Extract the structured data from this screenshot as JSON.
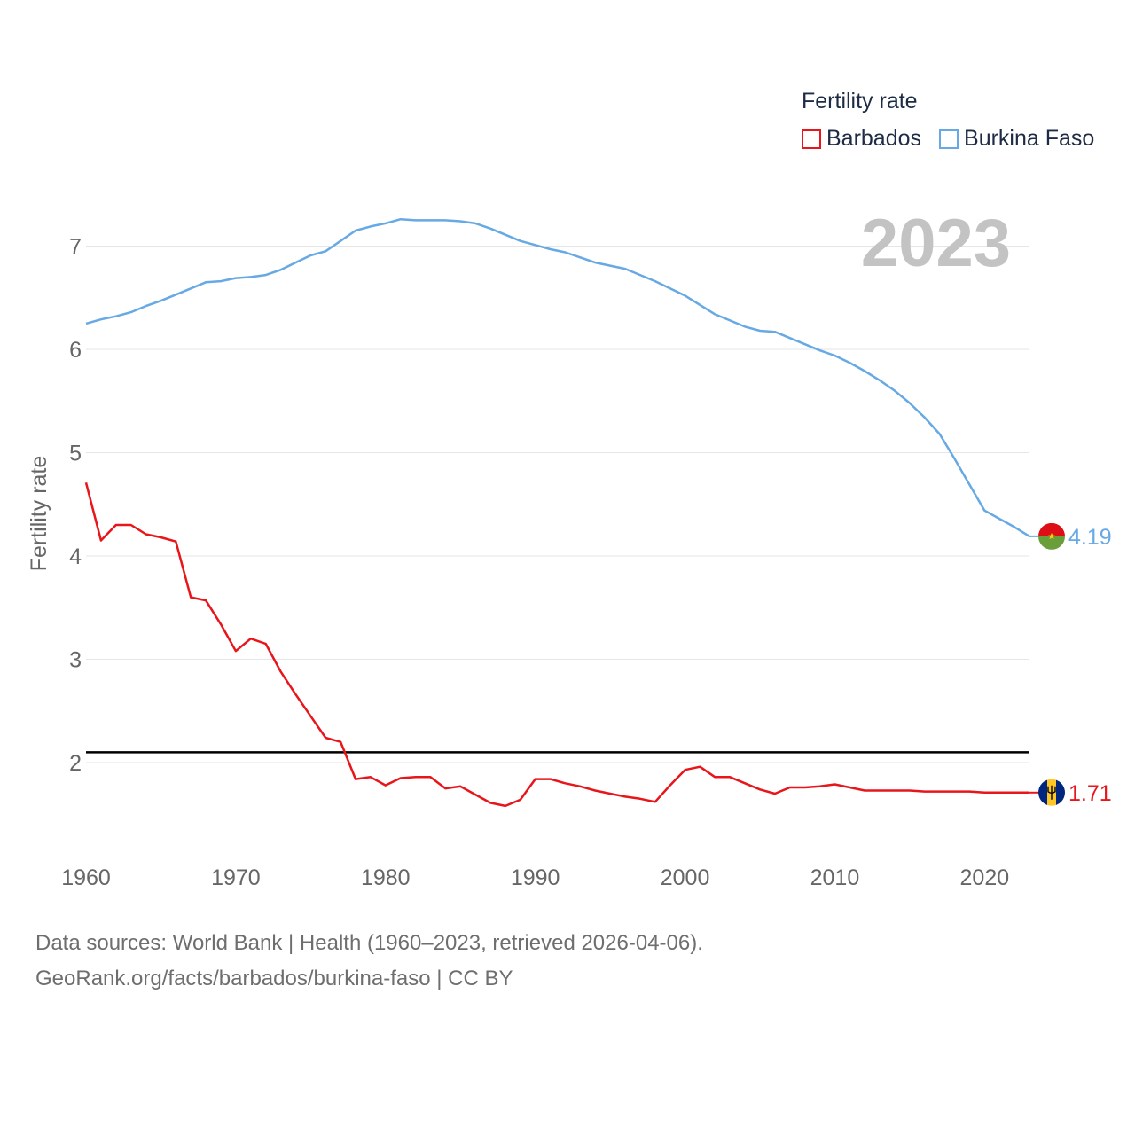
{
  "legend": {
    "title": "Fertility rate",
    "items": [
      {
        "name": "Barbados",
        "color": "#e8161b"
      },
      {
        "name": "Burkina Faso",
        "color": "#67a9e4"
      }
    ]
  },
  "footer": {
    "line1": "Data sources: World Bank | Health (1960–2023, retrieved 2026-04-06).",
    "line2": "GeoRank.org/facts/barbados/burkina-faso | CC BY"
  },
  "chart_data": {
    "type": "line",
    "ylabel": "Fertility rate",
    "xlabel": "",
    "year_label": "2023",
    "xlim": [
      1960,
      2023
    ],
    "ylim": [
      1.0,
      7.6
    ],
    "x_ticks": [
      1960,
      1970,
      1980,
      1990,
      2000,
      2010,
      2020
    ],
    "y_ticks": [
      2,
      3,
      4,
      5,
      6,
      7
    ],
    "reference_line": {
      "value": 2.1,
      "color": "#000000"
    },
    "x": [
      1960,
      1961,
      1962,
      1963,
      1964,
      1965,
      1966,
      1967,
      1968,
      1969,
      1970,
      1971,
      1972,
      1973,
      1974,
      1975,
      1976,
      1977,
      1978,
      1979,
      1980,
      1981,
      1982,
      1983,
      1984,
      1985,
      1986,
      1987,
      1988,
      1989,
      1990,
      1991,
      1992,
      1993,
      1994,
      1995,
      1996,
      1997,
      1998,
      1999,
      2000,
      2001,
      2002,
      2003,
      2004,
      2005,
      2006,
      2007,
      2008,
      2009,
      2010,
      2011,
      2012,
      2013,
      2014,
      2015,
      2016,
      2017,
      2018,
      2019,
      2020,
      2021,
      2022,
      2023
    ],
    "series": [
      {
        "name": "Barbados",
        "color": "#e8161b",
        "end_label": "1.71",
        "flag": "barbados",
        "values": [
          4.71,
          4.15,
          4.3,
          4.3,
          4.21,
          4.18,
          4.14,
          3.6,
          3.57,
          3.34,
          3.08,
          3.2,
          3.15,
          2.88,
          2.66,
          2.45,
          2.24,
          2.2,
          1.84,
          1.86,
          1.78,
          1.85,
          1.86,
          1.86,
          1.75,
          1.77,
          1.69,
          1.61,
          1.58,
          1.64,
          1.84,
          1.84,
          1.8,
          1.77,
          1.73,
          1.7,
          1.67,
          1.65,
          1.62,
          1.78,
          1.93,
          1.96,
          1.86,
          1.86,
          1.8,
          1.74,
          1.7,
          1.76,
          1.76,
          1.77,
          1.79,
          1.76,
          1.73,
          1.73,
          1.73,
          1.73,
          1.72,
          1.72,
          1.72,
          1.72,
          1.71,
          1.71,
          1.71,
          1.71
        ]
      },
      {
        "name": "Burkina Faso",
        "color": "#67a9e4",
        "end_label": "4.19",
        "flag": "burkina-faso",
        "values": [
          6.25,
          6.29,
          6.32,
          6.36,
          6.42,
          6.47,
          6.53,
          6.59,
          6.65,
          6.66,
          6.69,
          6.7,
          6.72,
          6.77,
          6.84,
          6.91,
          6.95,
          7.05,
          7.15,
          7.19,
          7.22,
          7.26,
          7.25,
          7.25,
          7.25,
          7.24,
          7.22,
          7.17,
          7.11,
          7.05,
          7.01,
          6.97,
          6.94,
          6.89,
          6.84,
          6.81,
          6.78,
          6.72,
          6.66,
          6.59,
          6.52,
          6.43,
          6.34,
          6.28,
          6.22,
          6.18,
          6.17,
          6.11,
          6.05,
          5.99,
          5.94,
          5.87,
          5.79,
          5.7,
          5.6,
          5.48,
          5.34,
          5.18,
          4.94,
          4.69,
          4.44,
          4.36,
          4.28,
          4.19
        ]
      }
    ]
  }
}
